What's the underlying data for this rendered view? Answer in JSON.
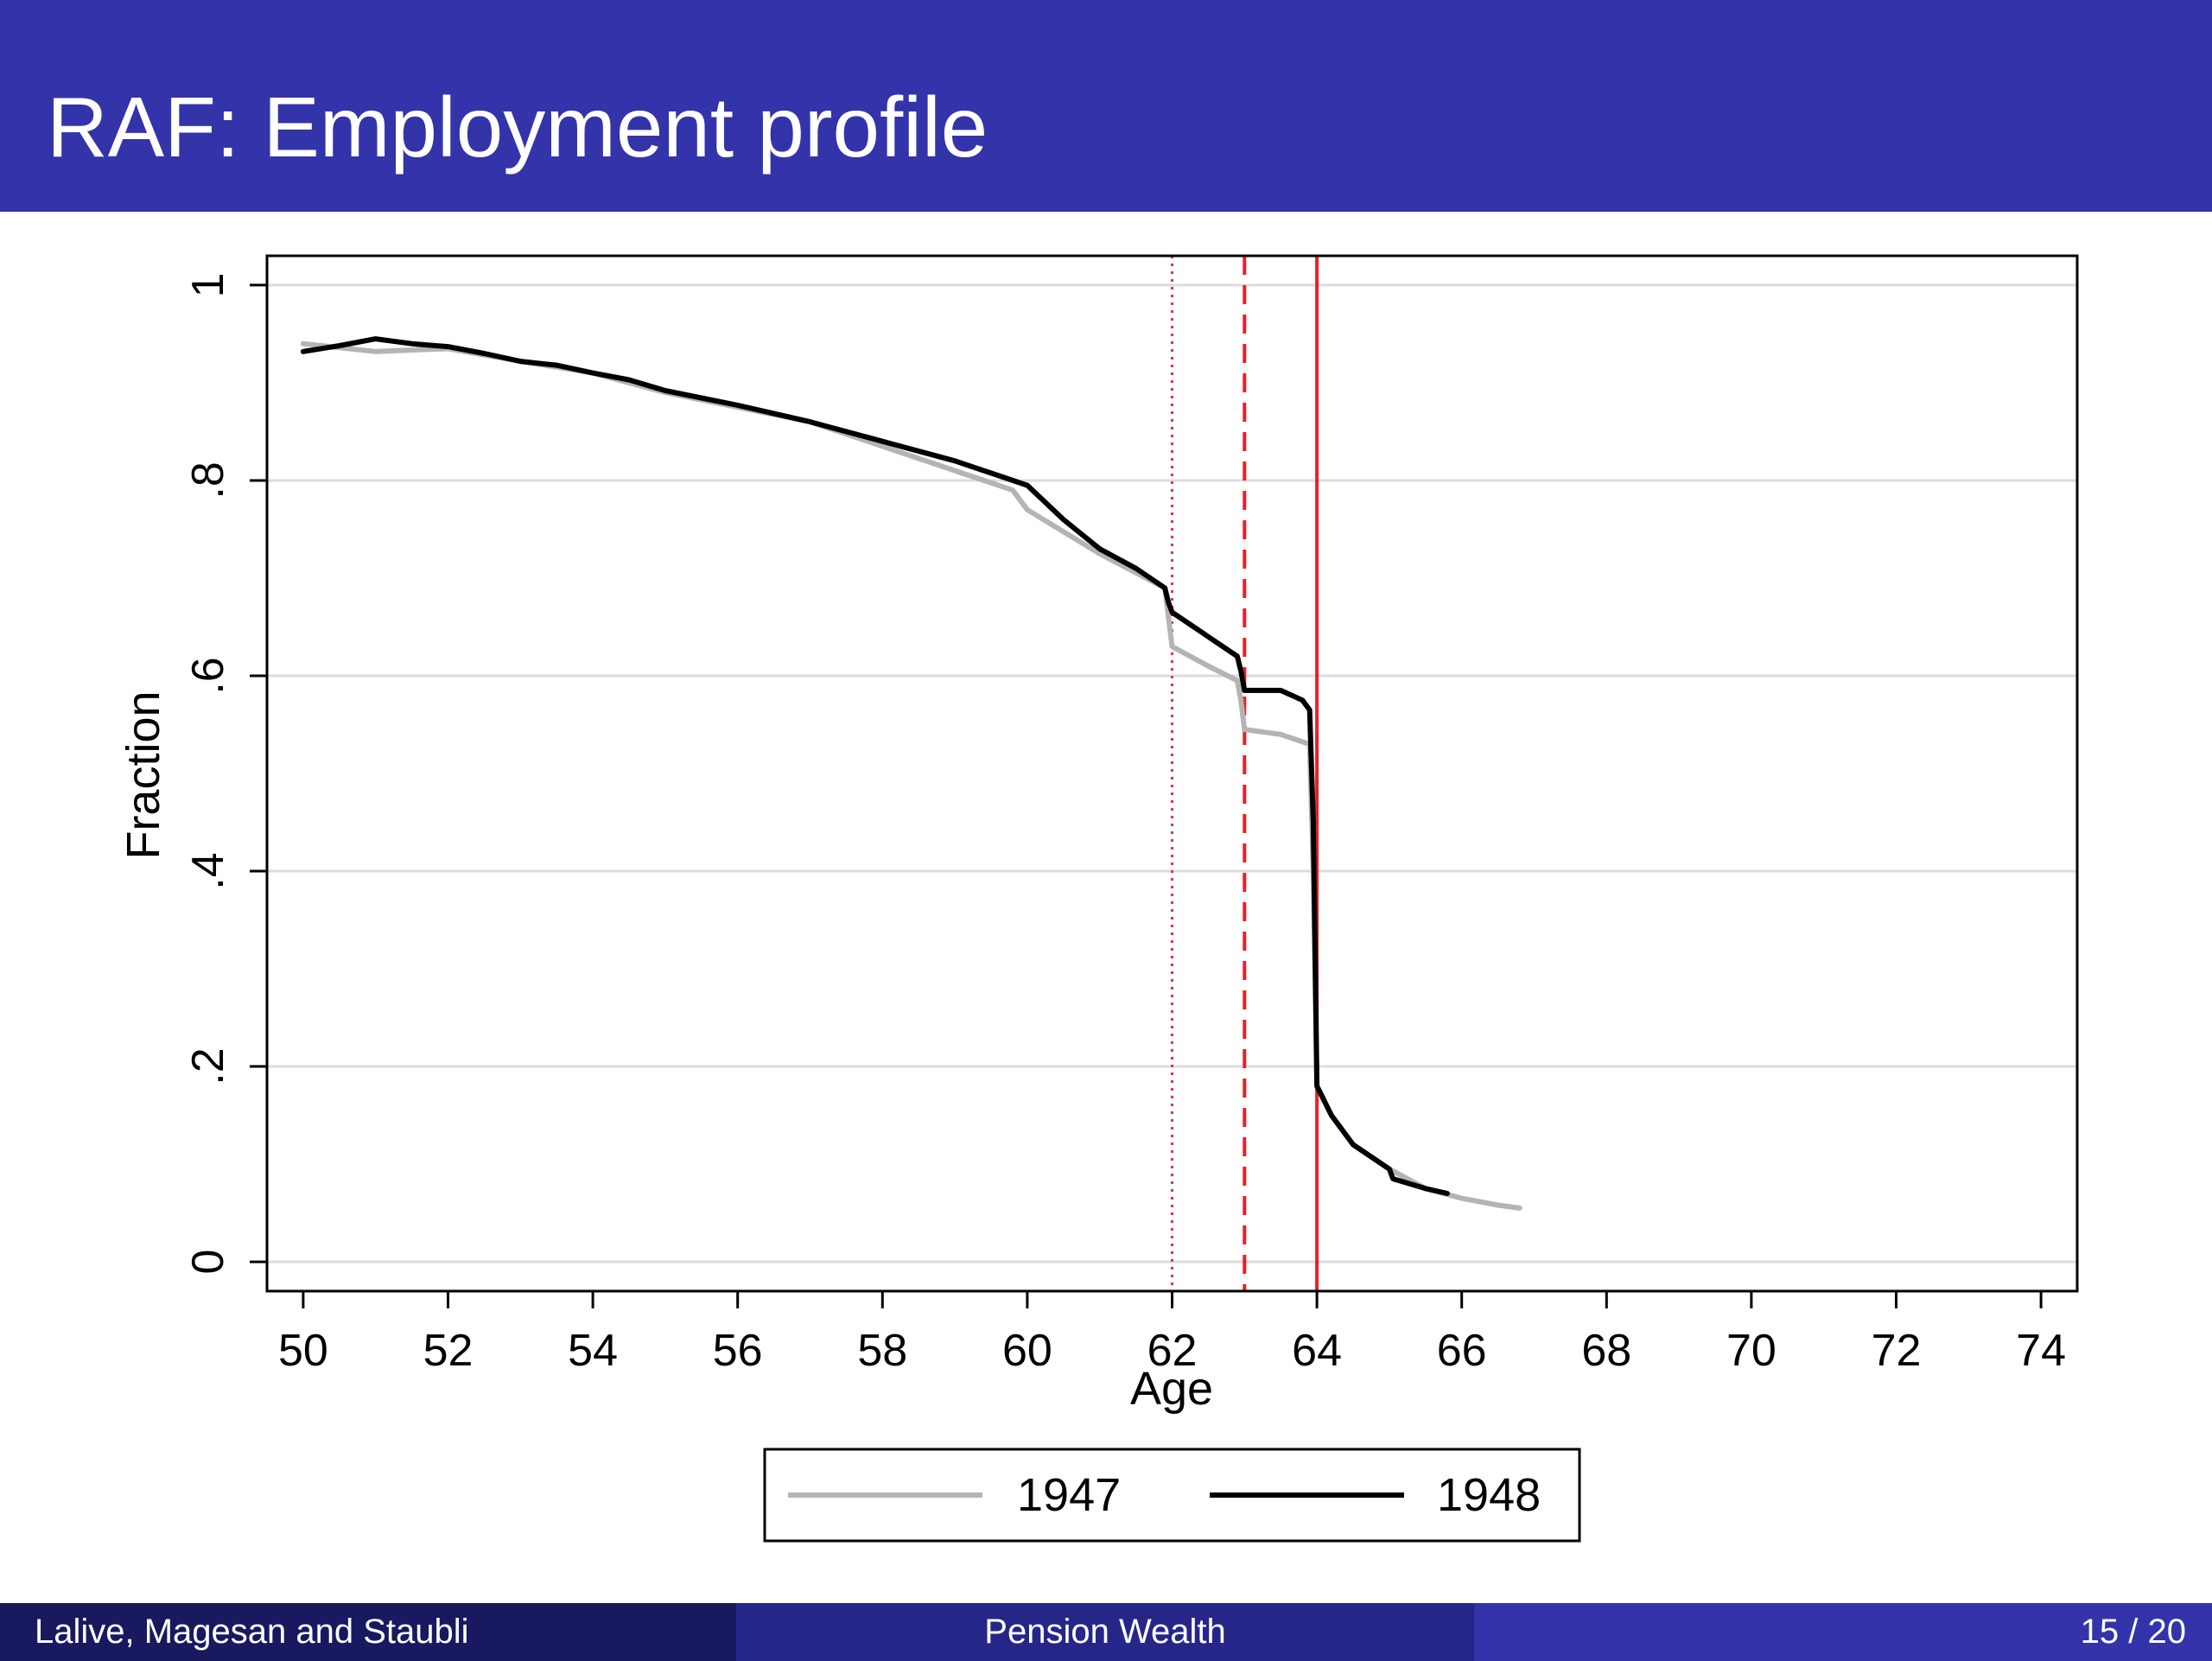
{
  "slide": {
    "title": "RAF: Employment profile"
  },
  "footer": {
    "authors": "Lalive, Magesan and Staubli",
    "talk_title": "Pension Wealth",
    "page": "15 / 20"
  },
  "chart_data": {
    "type": "line",
    "xlabel": "Age",
    "ylabel": "Fraction",
    "xlim": [
      49.5,
      74.5
    ],
    "ylim": [
      -0.03,
      1.03
    ],
    "xticks": [
      50,
      52,
      54,
      56,
      58,
      60,
      62,
      64,
      66,
      68,
      70,
      72,
      74
    ],
    "yticks": [
      0,
      0.2,
      0.4,
      0.6,
      0.8,
      1
    ],
    "ytick_labels": [
      "0",
      ".2",
      ".4",
      ".6",
      ".8",
      "1"
    ],
    "grid": "horizontal",
    "legend_position": "bottom",
    "reference_lines": [
      {
        "x": 62,
        "style": "dotted",
        "color": "#e8333a"
      },
      {
        "x": 63,
        "style": "dashed",
        "color": "#e8202a"
      },
      {
        "x": 64,
        "style": "solid",
        "color": "#e8202a"
      }
    ],
    "series": [
      {
        "name": "1947",
        "color": "#b4b4b4",
        "x": [
          50,
          51,
          52,
          53,
          54,
          55,
          56,
          57,
          58,
          59,
          59.8,
          60,
          61,
          61.9,
          61.95,
          62,
          62.5,
          62.9,
          62.95,
          63,
          63.5,
          63.9,
          63.95,
          64,
          64.2,
          64.5,
          65,
          65.5,
          66,
          66.5,
          66.8
        ],
        "y": [
          0.94,
          0.932,
          0.935,
          0.922,
          0.91,
          0.89,
          0.875,
          0.86,
          0.835,
          0.81,
          0.79,
          0.77,
          0.725,
          0.69,
          0.66,
          0.63,
          0.61,
          0.595,
          0.575,
          0.545,
          0.54,
          0.53,
          0.4,
          0.18,
          0.15,
          0.12,
          0.095,
          0.075,
          0.065,
          0.058,
          0.055
        ]
      },
      {
        "name": "1948",
        "color": "#000000",
        "x": [
          50,
          50.5,
          51,
          51.5,
          52,
          52.5,
          53,
          53.5,
          54,
          54.5,
          55,
          56,
          57,
          58,
          59,
          59.8,
          60,
          60.5,
          61,
          61.5,
          61.9,
          61.95,
          62,
          62.5,
          62.9,
          62.95,
          63,
          63.3,
          63.5,
          63.8,
          63.9,
          63.95,
          64,
          64.2,
          64.5,
          65,
          65.05,
          65.5,
          65.8
        ],
        "y": [
          0.932,
          0.938,
          0.945,
          0.94,
          0.937,
          0.93,
          0.922,
          0.918,
          0.91,
          0.903,
          0.892,
          0.877,
          0.86,
          0.84,
          0.82,
          0.8,
          0.795,
          0.76,
          0.73,
          0.71,
          0.69,
          0.675,
          0.665,
          0.64,
          0.62,
          0.605,
          0.585,
          0.585,
          0.585,
          0.575,
          0.565,
          0.45,
          0.18,
          0.15,
          0.12,
          0.095,
          0.085,
          0.075,
          0.07
        ]
      }
    ]
  }
}
